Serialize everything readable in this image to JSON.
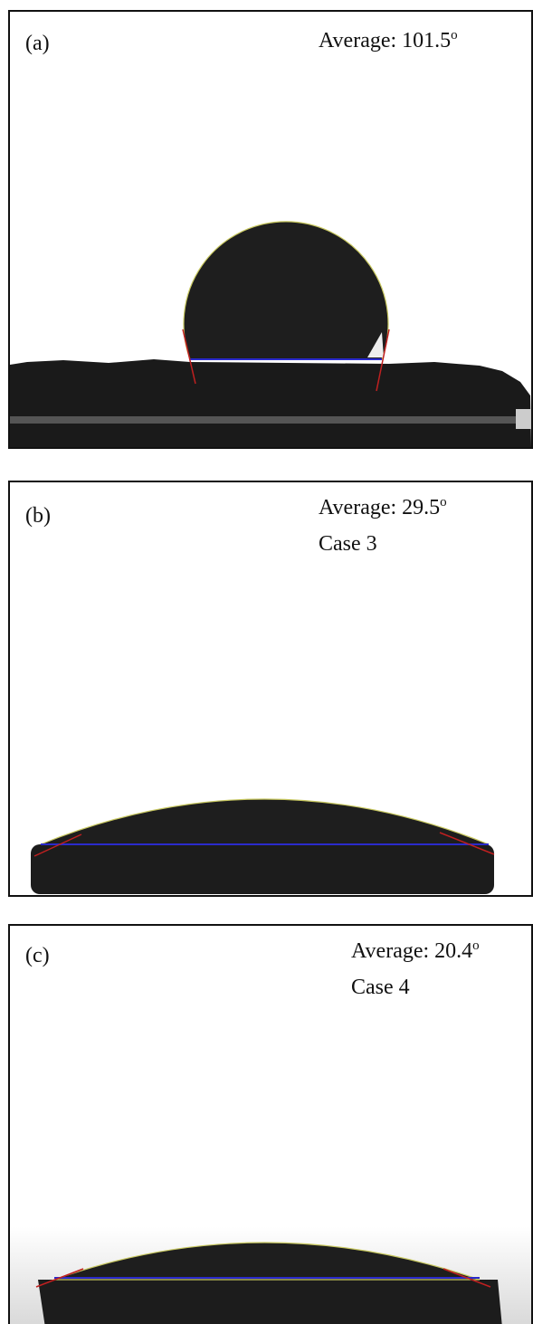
{
  "panels": [
    {
      "label": "(a)",
      "average": "Average: 101.5",
      "degree": "o"
    },
    {
      "label": "(b)",
      "average": "Average: 29.5",
      "degree": "o",
      "case": "Case 3"
    },
    {
      "label": "(c)",
      "average": "Average: 20.4",
      "degree": "o",
      "case": "Case 4"
    }
  ]
}
